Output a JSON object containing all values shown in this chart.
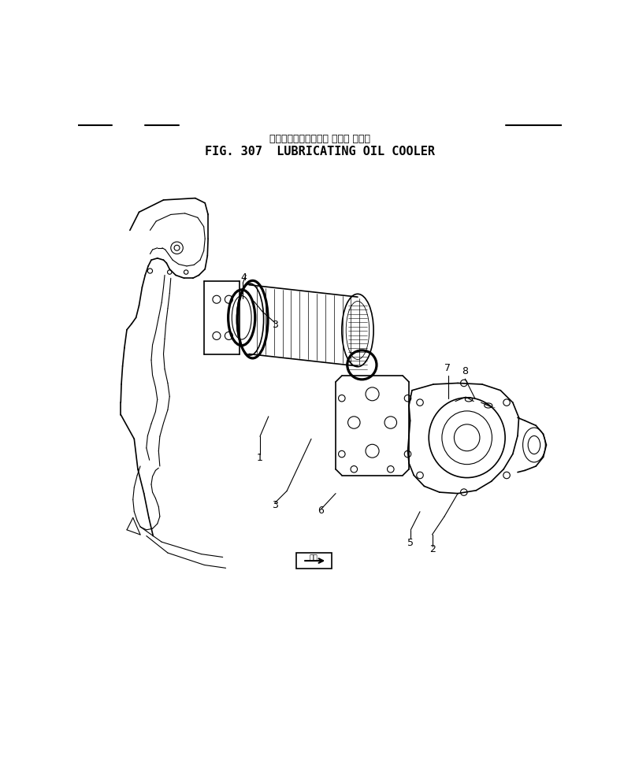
{
  "title_japanese": "ルーブリケーティング オイル クーラ",
  "title_english": "FIG. 307  LUBRICATING OIL COOLER",
  "bg_color": "#ffffff",
  "line_color": "#000000",
  "fig_width": 7.92,
  "fig_height": 9.74,
  "dpi": 100,
  "header_lines": [
    [
      [
        0,
        55
      ],
      [
        55,
        55
      ]
    ],
    [
      [
        110,
        55
      ],
      [
        165,
        55
      ]
    ],
    [
      [
        700,
        55
      ],
      [
        792,
        55
      ]
    ]
  ]
}
